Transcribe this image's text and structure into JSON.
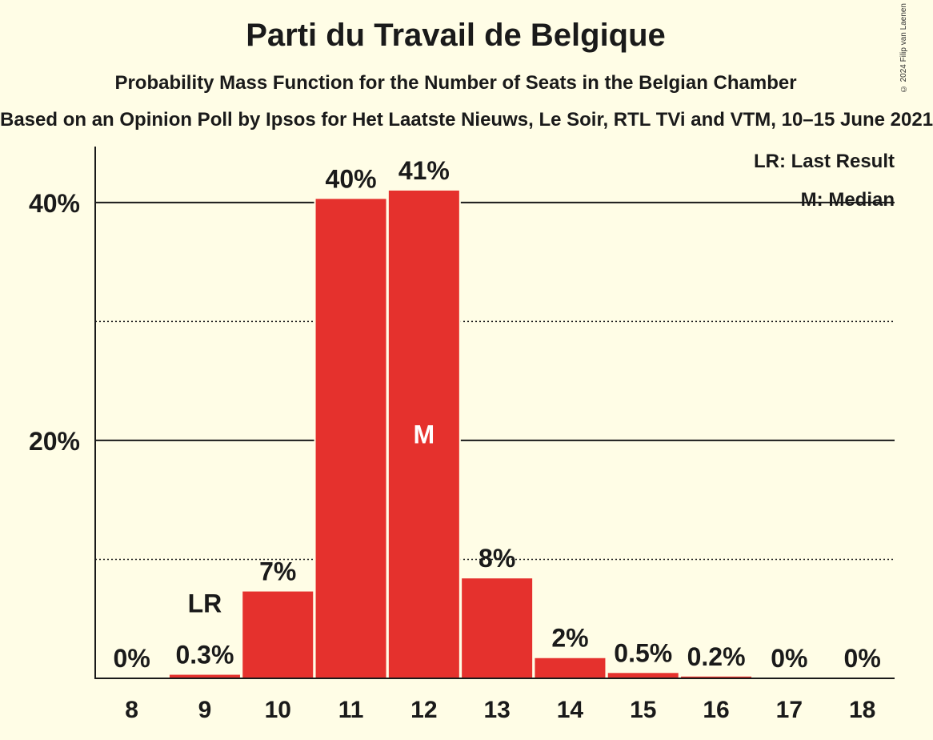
{
  "page": {
    "title": "Parti du Travail de Belgique",
    "subtitle": "Probability Mass Function for the Number of Seats in the Belgian Chamber",
    "source": "Based on an Opinion Poll by Ipsos for Het Laatste Nieuws, Le Soir, RTL TVi and VTM, 10–15 June 2021",
    "copyright": "© 2024 Filip van Laenen"
  },
  "legend": {
    "last_result": "LR: Last Result",
    "median": "M: Median"
  },
  "chart_data": {
    "type": "bar",
    "title": "Parti du Travail de Belgique",
    "subtitle": "Probability Mass Function for the Number of Seats in the Belgian Chamber",
    "categories": [
      "8",
      "9",
      "10",
      "11",
      "12",
      "13",
      "14",
      "15",
      "16",
      "17",
      "18"
    ],
    "values": [
      0,
      0.3,
      7.3,
      40.3,
      41.0,
      8.4,
      1.7,
      0.45,
      0.15,
      0,
      0
    ],
    "data_labels": [
      "0%",
      "0.3%",
      "7%",
      "40%",
      "41%",
      "8%",
      "2%",
      "0.5%",
      "0.2%",
      "0%",
      "0%"
    ],
    "ylim": [
      0,
      44.7
    ],
    "y_ticks": [
      {
        "value": 20,
        "label": "20%"
      },
      {
        "value": 40,
        "label": "40%"
      }
    ],
    "minor_gridlines": [
      10,
      30
    ],
    "last_result": {
      "category": "9",
      "label": "LR"
    },
    "median": {
      "category": "12",
      "label": "M"
    },
    "bar_color": "#E5312D",
    "legend_position": "top-right",
    "grid": true
  }
}
